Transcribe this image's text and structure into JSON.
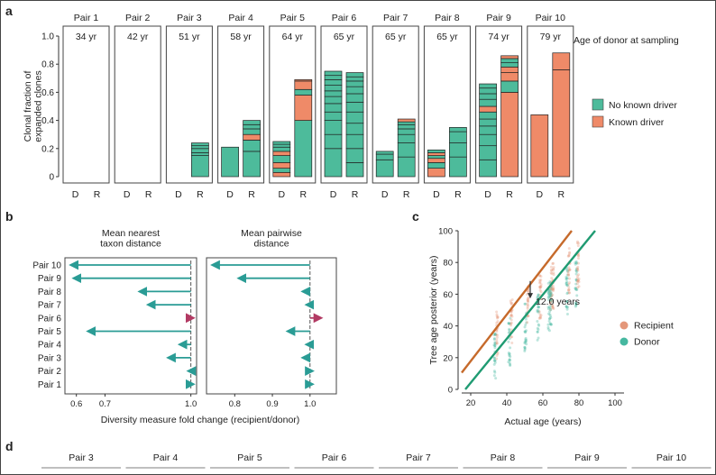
{
  "panel_labels": {
    "a": "a",
    "b": "b",
    "c": "c",
    "d": "d"
  },
  "colors": {
    "no_driver": "#4dbb9b",
    "known_driver": "#ef8a68",
    "recipient": "#e4977a",
    "donor": "#46b8a0",
    "recipient_line": "#c66a2b",
    "donor_line": "#1f9b72",
    "arrow": "#2a9c95",
    "arrow_neg": "#b23a63"
  },
  "chart_data": [
    {
      "id": "a",
      "type": "bar",
      "ylabel": "Clonal fraction of\nexpanded clones",
      "ylim": [
        0,
        1.0
      ],
      "yticks": [
        "0",
        "0.2",
        "0.4",
        "0.6",
        "0.8",
        "1.0"
      ],
      "age_caption": "Age of donor at sampling",
      "legend": [
        {
          "name": "No known driver",
          "color": "#4dbb9b"
        },
        {
          "name": "Known driver",
          "color": "#ef8a68"
        }
      ],
      "pairs": [
        {
          "name": "Pair 1",
          "age": "34 yr",
          "D": [],
          "R": []
        },
        {
          "name": "Pair 2",
          "age": "42 yr",
          "D": [],
          "R": []
        },
        {
          "name": "Pair 3",
          "age": "51 yr",
          "D": [],
          "R": [
            "n0.15",
            "n0.02",
            "n0.03",
            "n0.02",
            "n0.02"
          ]
        },
        {
          "name": "Pair 4",
          "age": "58 yr",
          "D": [
            "n0.21"
          ],
          "R": [
            "n0.18",
            "n0.08",
            "k0.04",
            "n0.04",
            "n0.03",
            "n0.03"
          ]
        },
        {
          "name": "Pair 5",
          "age": "64 yr",
          "D": [
            "k0.03",
            "n0.03",
            "k0.04",
            "n0.05",
            "k0.03",
            "n0.03",
            "n0.02",
            "n0.02"
          ],
          "R": [
            "n0.40",
            "k0.18",
            "n0.04",
            "k0.06",
            "k0.01"
          ]
        },
        {
          "name": "Pair 6",
          "age": "65 yr",
          "D": [
            "n0.20",
            "n0.10",
            "n0.10",
            "n0.06",
            "n0.06",
            "n0.05",
            "n0.04",
            "n0.04",
            "n0.04",
            "n0.03",
            "n0.03"
          ],
          "R": [
            "n0.10",
            "n0.10",
            "n0.10",
            "n0.08",
            "n0.08",
            "n0.07",
            "n0.06",
            "n0.05",
            "n0.04",
            "n0.03",
            "n0.03"
          ]
        },
        {
          "name": "Pair 7",
          "age": "65 yr",
          "D": [
            "n0.12",
            "n0.04",
            "n0.02"
          ],
          "R": [
            "n0.14",
            "n0.10",
            "n0.06",
            "n0.04",
            "n0.03",
            "n0.02",
            "k0.02"
          ]
        },
        {
          "name": "Pair 8",
          "age": "65 yr",
          "D": [
            "k0.06",
            "n0.04",
            "k0.03",
            "n0.02",
            "k0.02",
            "n0.02"
          ],
          "R": [
            "n0.14",
            "n0.10",
            "n0.08",
            "n0.03"
          ]
        },
        {
          "name": "Pair 9",
          "age": "74 yr",
          "D": [
            "n0.12",
            "n0.10",
            "n0.08",
            "n0.06",
            "n0.05",
            "n0.05",
            "k0.04",
            "n0.05",
            "n0.04",
            "n0.04",
            "n0.03"
          ],
          "R": [
            "k0.60",
            "n0.08",
            "k0.06",
            "k0.04",
            "n0.03",
            "n0.03",
            "k0.02"
          ]
        },
        {
          "name": "Pair 10",
          "age": "79 yr",
          "D": [
            "k0.44"
          ],
          "R": [
            "k0.76",
            "k0.12"
          ]
        }
      ],
      "x_labels": [
        "D",
        "R"
      ]
    },
    {
      "id": "b",
      "type": "fold-change arrows",
      "xlabel": "Diversity measure fold change (recipient/donor)",
      "rows": [
        "Pair 10",
        "Pair 9",
        "Pair 8",
        "Pair 7",
        "Pair 6",
        "Pair 5",
        "Pair 4",
        "Pair 3",
        "Pair 2",
        "Pair 1"
      ],
      "subplots": [
        {
          "title": "Mean nearest\ntaxon distance",
          "xlim": [
            0.56,
            1.02
          ],
          "xticks": [
            "0.6",
            "0.7",
            "1.0"
          ],
          "xtick_values": [
            0.6,
            0.7,
            1.0
          ],
          "values": [
            0.58,
            0.59,
            0.82,
            0.85,
            1.01,
            0.64,
            0.96,
            0.92,
            0.99,
            1.0
          ]
        },
        {
          "title": "Mean pairwise\ndistance",
          "xlim": [
            0.725,
            1.07
          ],
          "xticks": [
            "0.8",
            "0.9",
            "1.0"
          ],
          "xtick_values": [
            0.8,
            0.9,
            1.0
          ],
          "values": [
            0.74,
            0.81,
            0.98,
            0.99,
            1.03,
            0.94,
            0.99,
            0.98,
            1.0,
            1.0
          ]
        }
      ]
    },
    {
      "id": "c",
      "type": "scatter",
      "xlabel": "Actual age (years)",
      "ylabel": "Tree age posterior (years)",
      "xlim": [
        15,
        105
      ],
      "ylim": [
        0,
        100
      ],
      "xticks": [
        "20",
        "40",
        "60",
        "80",
        "100"
      ],
      "xtick_values": [
        20,
        40,
        60,
        80,
        100
      ],
      "yticks": [
        "0",
        "20",
        "40",
        "60",
        "80",
        "100"
      ],
      "ytick_values": [
        0,
        20,
        40,
        60,
        80,
        100
      ],
      "annotation": "12.0 years",
      "offset": 12.0,
      "legend": [
        {
          "name": "Recipient",
          "color": "#e4977a"
        },
        {
          "name": "Donor",
          "color": "#46b8a0"
        }
      ],
      "sample_ages": [
        34,
        42,
        51,
        58,
        64,
        65,
        74,
        79
      ],
      "recipient_line": {
        "x": [
          15,
          76
        ],
        "y": [
          10.5,
          100
        ]
      },
      "donor_line": {
        "x": [
          17,
          89
        ],
        "y": [
          0,
          100
        ]
      }
    }
  ],
  "panel_d": {
    "pairs": [
      "Pair 3",
      "Pair 4",
      "Pair 5",
      "Pair 6",
      "Pair 7",
      "Pair 8",
      "Pair 9",
      "Pair 10"
    ]
  }
}
